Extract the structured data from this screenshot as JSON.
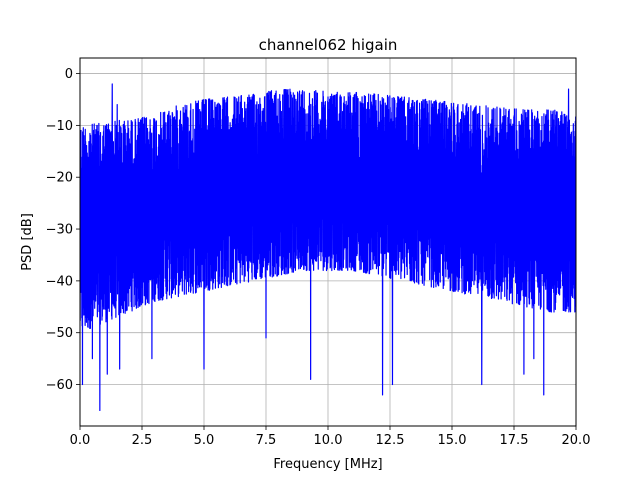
{
  "chart_data": {
    "type": "line",
    "title": "channel062 higain",
    "xlabel": "Frequency [MHz]",
    "ylabel": "PSD [dB]",
    "xlim": [
      0,
      20
    ],
    "ylim": [
      -68,
      3
    ],
    "xticks": [
      0.0,
      2.5,
      5.0,
      7.5,
      10.0,
      12.5,
      15.0,
      17.5,
      20.0
    ],
    "xtick_labels": [
      "0.0",
      "2.5",
      "5.0",
      "7.5",
      "10.0",
      "12.5",
      "15.0",
      "17.5",
      "20.0"
    ],
    "yticks": [
      0,
      -10,
      -20,
      -30,
      -40,
      -50,
      -60
    ],
    "ytick_labels": [
      "0",
      "−10",
      "−20",
      "−30",
      "−40",
      "−50",
      "−60"
    ],
    "grid": true,
    "series_color": "#0000ff",
    "upper_envelope": {
      "x": [
        0,
        1,
        1.5,
        2,
        3,
        4,
        5,
        6,
        7,
        8,
        9,
        10,
        11,
        12,
        13,
        14,
        15,
        16,
        17,
        18,
        19,
        20
      ],
      "y": [
        -10,
        -9.5,
        -9,
        -9,
        -8,
        -6,
        -5,
        -4.5,
        -4,
        -3,
        -3,
        -3.5,
        -3.5,
        -4,
        -4.5,
        -5,
        -5.5,
        -6,
        -6.5,
        -7,
        -7,
        -7
      ]
    },
    "lower_envelope": {
      "x": [
        0,
        1,
        2,
        3,
        4,
        5,
        6,
        7,
        8,
        9,
        10,
        11,
        12,
        13,
        14,
        15,
        16,
        17,
        18,
        19,
        20
      ],
      "y": [
        -50,
        -48,
        -46,
        -44,
        -43,
        -42,
        -41,
        -40,
        -39,
        -38,
        -38,
        -38,
        -39,
        -40,
        -41,
        -42,
        -43,
        -44,
        -45,
        -46,
        -46
      ]
    },
    "peaks": [
      {
        "x": 1.3,
        "y": -2
      },
      {
        "x": 1.5,
        "y": -6
      },
      {
        "x": 19.7,
        "y": -3
      }
    ],
    "dips": [
      {
        "x": 0.1,
        "y": -60
      },
      {
        "x": 0.5,
        "y": -55
      },
      {
        "x": 0.8,
        "y": -65
      },
      {
        "x": 1.1,
        "y": -58
      },
      {
        "x": 1.3,
        "y": -63
      },
      {
        "x": 1.6,
        "y": -57
      },
      {
        "x": 2.9,
        "y": -55
      },
      {
        "x": 5.0,
        "y": -57
      },
      {
        "x": 7.5,
        "y": -51
      },
      {
        "x": 9.3,
        "y": -59
      },
      {
        "x": 12.2,
        "y": -62
      },
      {
        "x": 12.6,
        "y": -60
      },
      {
        "x": 16.2,
        "y": -60
      },
      {
        "x": 17.9,
        "y": -58
      },
      {
        "x": 18.3,
        "y": -55
      },
      {
        "x": 18.7,
        "y": -62
      }
    ]
  }
}
